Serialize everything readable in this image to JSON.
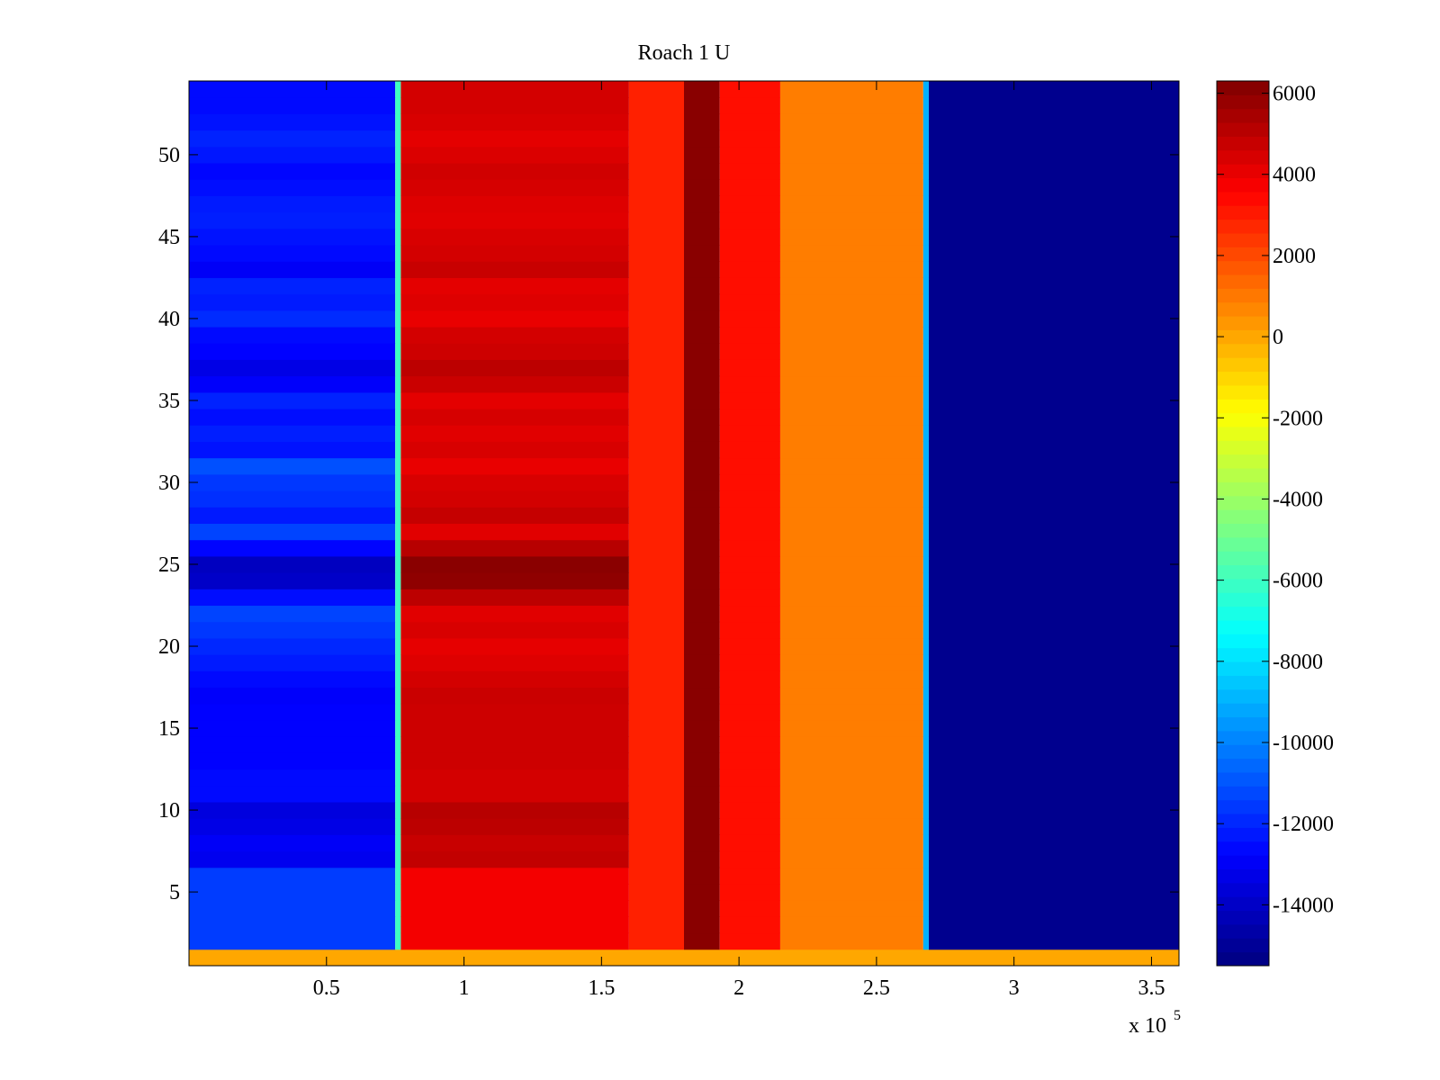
{
  "chart_data": {
    "type": "heatmap",
    "title": "Roach 1 U",
    "xlabel": "",
    "ylabel": "",
    "x_multiplier_label": "x 10",
    "x_multiplier_exponent": "5",
    "xlim": [
      0,
      3.6
    ],
    "ylim": [
      0.5,
      54.5
    ],
    "x_ticks": [
      0.5,
      1,
      1.5,
      2,
      2.5,
      3,
      3.5
    ],
    "x_tick_labels": [
      "0.5",
      "1",
      "1.5",
      "2",
      "2.5",
      "3",
      "3.5"
    ],
    "y_ticks": [
      5,
      10,
      15,
      20,
      25,
      30,
      35,
      40,
      45,
      50
    ],
    "y_tick_labels": [
      "5",
      "10",
      "15",
      "20",
      "25",
      "30",
      "35",
      "40",
      "45",
      "50"
    ],
    "colorbar": {
      "colormap": "jet",
      "range": [
        -15500,
        6300
      ],
      "ticks": [
        6000,
        4000,
        2000,
        0,
        -2000,
        -4000,
        -6000,
        -8000,
        -10000,
        -12000,
        -14000
      ],
      "tick_labels": [
        "6000",
        "4000",
        "2000",
        "0",
        "-2000",
        "-4000",
        "-6000",
        "-8000",
        "-10000",
        "-12000",
        "-14000"
      ]
    },
    "row_count": 54,
    "bottom_row_value": 0,
    "bands": [
      {
        "x_start": 0.0,
        "x_end": 0.75,
        "value": -11500
      },
      {
        "x_start": 0.77,
        "x_end": 1.6,
        "value": 3800
      },
      {
        "x_start": 1.6,
        "x_end": 1.8,
        "value": 2900
      },
      {
        "x_start": 1.8,
        "x_end": 1.93,
        "value": 6100
      },
      {
        "x_start": 1.93,
        "x_end": 2.15,
        "value": 3300
      },
      {
        "x_start": 2.15,
        "x_end": 2.67,
        "value": 900
      },
      {
        "x_start": 2.69,
        "x_end": 3.6,
        "value": -15200
      }
    ],
    "row_offsets": [
      0,
      0,
      0,
      0,
      0,
      0,
      1800,
      1600,
      2000,
      2200,
      1200,
      1200,
      1400,
      1400,
      1400,
      1400,
      1500,
      1200,
      800,
      500,
      1000,
      700,
      2000,
      3600,
      3800,
      2200,
      700,
      1700,
      1200,
      1000,
      400,
      1000,
      700,
      1100,
      600,
      1500,
      2000,
      1400,
      1200,
      400,
      800,
      600,
      1600,
      1200,
      1000,
      700,
      800,
      1100,
      1300,
      900,
      600,
      1000,
      1200,
      1200
    ]
  }
}
